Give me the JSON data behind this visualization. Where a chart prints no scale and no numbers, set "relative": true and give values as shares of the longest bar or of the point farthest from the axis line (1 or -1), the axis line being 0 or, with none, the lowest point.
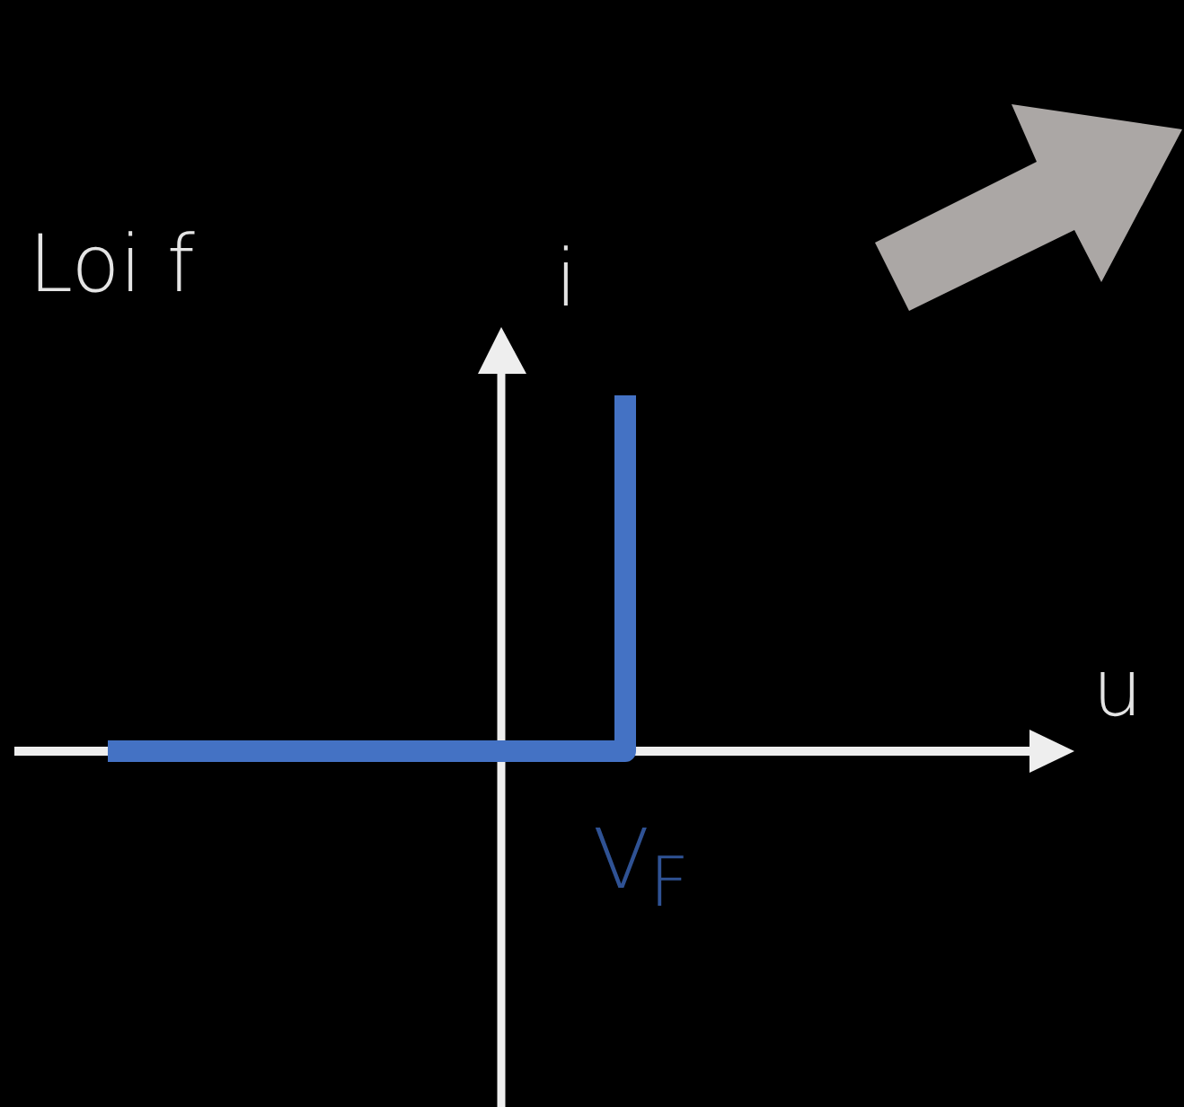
{
  "chart_data": {
    "type": "step",
    "title": "Loi f",
    "ylabel": "i",
    "annotations": [
      "u",
      "V$_{F}$"
    ],
    "categories": [
      null,
      null,
      null,
      null,
      null
    ],
    "relative": true,
    "series": [
      {
        "color": "#4472c4",
        "values": [
          0,
          0,
          0,
          0,
          1
        ]
      }
    ],
    "legend": false,
    "grid": false,
    "tick_labels": false
  }
}
